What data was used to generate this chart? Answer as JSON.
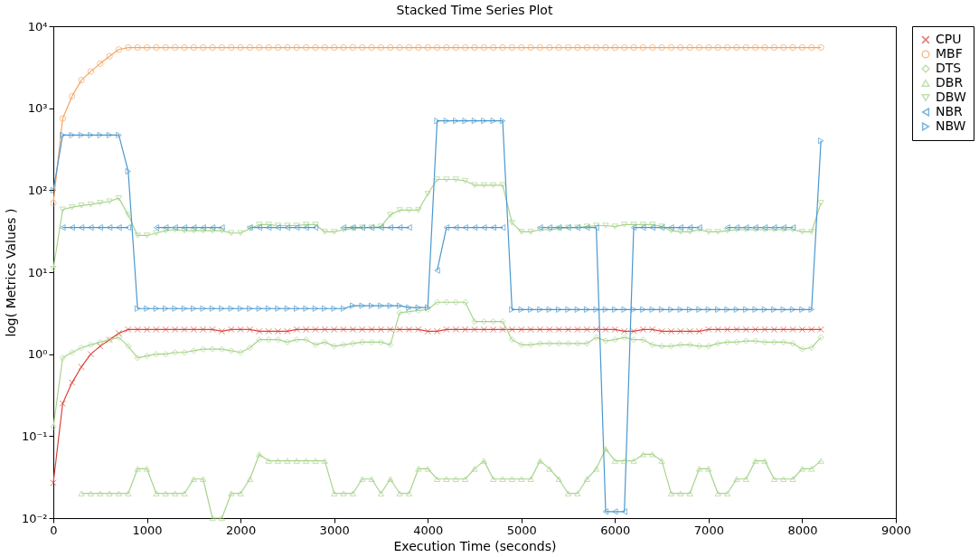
{
  "chart_data": {
    "type": "line",
    "title": "Stacked Time Series Plot",
    "xlabel": "Execution Time (seconds)",
    "ylabel": "log( Metrics Values )",
    "x": [
      0,
      100,
      200,
      300,
      400,
      500,
      600,
      700,
      800,
      900,
      1000,
      1100,
      1200,
      1300,
      1400,
      1500,
      1600,
      1700,
      1800,
      1900,
      2000,
      2100,
      2200,
      2300,
      2400,
      2500,
      2600,
      2700,
      2800,
      2900,
      3000,
      3100,
      3200,
      3300,
      3400,
      3500,
      3600,
      3700,
      3800,
      3900,
      4000,
      4100,
      4200,
      4300,
      4400,
      4500,
      4600,
      4700,
      4800,
      4900,
      5000,
      5100,
      5200,
      5300,
      5400,
      5500,
      5600,
      5700,
      5800,
      5900,
      6000,
      6100,
      6200,
      6300,
      6400,
      6500,
      6600,
      6700,
      6800,
      6900,
      7000,
      7100,
      7200,
      7300,
      7400,
      7500,
      7600,
      7700,
      7800,
      7900,
      8000,
      8100,
      8200
    ],
    "log": "y",
    "xlim": [
      0,
      9000
    ],
    "xticks": [
      0,
      1000,
      2000,
      3000,
      4000,
      5000,
      6000,
      7000,
      8000,
      9000
    ],
    "ylim": [
      0.01,
      10000
    ],
    "yticks": [
      {
        "value": 0.01,
        "label": "10⁻²"
      },
      {
        "value": 0.1,
        "label": "10⁻¹"
      },
      {
        "value": 1,
        "label": "10⁰"
      },
      {
        "value": 10,
        "label": "10¹"
      },
      {
        "value": 100,
        "label": "10²"
      },
      {
        "value": 1000,
        "label": "10³"
      },
      {
        "value": 10000,
        "label": "10⁴"
      }
    ],
    "grid": false,
    "legend": "right",
    "line_style": "solid",
    "series": [
      {
        "name": "CPU",
        "color": "#d8453b",
        "marker": "cross",
        "values": [
          0.027,
          0.25,
          0.45,
          0.7,
          1.0,
          1.25,
          1.5,
          1.8,
          2,
          2,
          2,
          2,
          2,
          2,
          2,
          2,
          2,
          2,
          1.9,
          2,
          2,
          2,
          1.9,
          1.9,
          1.9,
          1.9,
          2,
          2,
          2,
          2,
          2,
          2,
          2,
          2,
          2,
          2,
          2,
          2,
          2,
          2,
          1.9,
          1.9,
          2,
          2,
          2,
          2,
          2,
          2,
          2,
          2,
          2,
          2,
          2,
          2,
          2,
          2,
          2,
          2,
          2,
          2,
          2,
          1.9,
          1.9,
          2,
          2,
          1.9,
          1.9,
          1.9,
          1.9,
          1.9,
          2,
          2,
          2,
          2,
          2,
          2,
          2,
          2,
          2,
          2,
          2,
          2,
          2
        ]
      },
      {
        "name": "MBF",
        "color": "#f4a460",
        "marker": "circle",
        "values": [
          70,
          750,
          1400,
          2200,
          2800,
          3500,
          4300,
          5200,
          5500,
          5500,
          5500,
          5500,
          5500,
          5500,
          5500,
          5500,
          5500,
          5500,
          5500,
          5500,
          5500,
          5500,
          5500,
          5500,
          5500,
          5500,
          5500,
          5500,
          5500,
          5500,
          5500,
          5500,
          5500,
          5500,
          5500,
          5500,
          5500,
          5500,
          5500,
          5500,
          5500,
          5500,
          5500,
          5500,
          5500,
          5500,
          5500,
          5500,
          5500,
          5500,
          5500,
          5500,
          5500,
          5500,
          5500,
          5500,
          5500,
          5500,
          5500,
          5500,
          5500,
          5500,
          5500,
          5500,
          5500,
          5500,
          5500,
          5500,
          5500,
          5500,
          5500,
          5500,
          5500,
          5500,
          5500,
          5500,
          5500,
          5500,
          5500,
          5500,
          5500,
          5500,
          5500
        ]
      },
      {
        "name": "DTS",
        "color": "#a8d48c",
        "marker": "diamond",
        "values": [
          0.13,
          0.9,
          1.05,
          1.2,
          1.3,
          1.4,
          1.5,
          1.6,
          1.25,
          0.9,
          0.95,
          1.0,
          1.0,
          1.05,
          1.05,
          1.1,
          1.15,
          1.15,
          1.15,
          1.1,
          1.05,
          1.2,
          1.5,
          1.5,
          1.5,
          1.4,
          1.5,
          1.5,
          1.3,
          1.4,
          1.25,
          1.3,
          1.35,
          1.4,
          1.4,
          1.4,
          1.3,
          3.2,
          3.3,
          3.4,
          3.5,
          4.3,
          4.3,
          4.3,
          4.3,
          2.5,
          2.5,
          2.5,
          2.5,
          1.5,
          1.3,
          1.3,
          1.35,
          1.35,
          1.35,
          1.35,
          1.35,
          1.35,
          1.6,
          1.45,
          1.5,
          1.6,
          1.5,
          1.5,
          1.3,
          1.25,
          1.25,
          1.3,
          1.3,
          1.25,
          1.25,
          1.35,
          1.4,
          1.4,
          1.45,
          1.45,
          1.4,
          1.4,
          1.4,
          1.35,
          1.15,
          1.2,
          1.6
        ]
      },
      {
        "name": "DBR",
        "color": "#a8d48c",
        "marker": "triangle",
        "values": [
          null,
          null,
          null,
          0.02,
          0.02,
          0.02,
          0.02,
          0.02,
          0.02,
          0.04,
          0.04,
          0.02,
          0.02,
          0.02,
          0.02,
          0.03,
          0.03,
          0.01,
          0.01,
          0.02,
          0.02,
          0.03,
          0.06,
          0.05,
          0.05,
          0.05,
          0.05,
          0.05,
          0.05,
          0.05,
          0.02,
          0.02,
          0.02,
          0.03,
          0.03,
          0.02,
          0.03,
          0.02,
          0.02,
          0.04,
          0.04,
          0.03,
          0.03,
          0.03,
          0.03,
          0.04,
          0.05,
          0.03,
          0.03,
          0.03,
          0.03,
          0.03,
          0.05,
          0.04,
          0.03,
          0.02,
          0.02,
          0.03,
          0.04,
          0.07,
          0.05,
          0.05,
          0.05,
          0.06,
          0.06,
          0.05,
          0.02,
          0.02,
          0.02,
          0.04,
          0.04,
          0.02,
          0.02,
          0.03,
          0.03,
          0.05,
          0.05,
          0.03,
          0.03,
          0.03,
          0.04,
          0.04,
          0.05
        ]
      },
      {
        "name": "DBW",
        "color": "#a8d48c",
        "marker": "triangle-down",
        "values": [
          11,
          58,
          62,
          65,
          67,
          70,
          73,
          80,
          50,
          28,
          28,
          30,
          32,
          33,
          32,
          32,
          32,
          32,
          32,
          30,
          30,
          34,
          38,
          38,
          37,
          37,
          37,
          38,
          38,
          31,
          31,
          33,
          34,
          35,
          35,
          36,
          50,
          57,
          57,
          57,
          90,
          135,
          135,
          135,
          130,
          115,
          115,
          115,
          115,
          40,
          31,
          31,
          33,
          33,
          34,
          35,
          35,
          36,
          37,
          37,
          36,
          38,
          38,
          38,
          38,
          36,
          32,
          31,
          31,
          33,
          31,
          31,
          32,
          33,
          33,
          33,
          33,
          33,
          33,
          33,
          31,
          31,
          70
        ]
      },
      {
        "name": "NBR",
        "color": "#4a98cf",
        "marker": "triangle-left",
        "values": [
          null,
          35,
          35,
          35,
          35,
          35,
          35,
          35,
          35,
          null,
          null,
          35,
          35,
          35,
          35,
          35,
          35,
          35,
          35,
          null,
          null,
          35,
          35,
          35,
          35,
          35,
          35,
          35,
          35,
          null,
          null,
          35,
          35,
          35,
          35,
          35,
          35,
          35,
          35,
          null,
          null,
          10.5,
          35,
          35,
          35,
          35,
          35,
          35,
          35,
          null,
          null,
          null,
          35,
          35,
          35,
          35,
          35,
          35,
          35,
          0.012,
          0.012,
          0.012,
          35,
          35,
          35,
          35,
          35,
          35,
          35,
          35,
          null,
          null,
          35,
          35,
          35,
          35,
          35,
          35,
          35,
          35,
          null,
          null,
          null
        ]
      },
      {
        "name": "NBW",
        "color": "#4a98cf",
        "marker": "triangle-right",
        "values": [
          100,
          470,
          470,
          470,
          470,
          470,
          470,
          470,
          170,
          3.6,
          3.6,
          3.6,
          3.6,
          3.6,
          3.6,
          3.6,
          3.6,
          3.6,
          3.6,
          3.6,
          3.6,
          3.6,
          3.6,
          3.6,
          3.6,
          3.6,
          3.6,
          3.6,
          3.6,
          3.6,
          3.6,
          3.6,
          3.9,
          3.9,
          3.9,
          3.9,
          3.9,
          3.9,
          3.7,
          3.7,
          3.7,
          700,
          700,
          700,
          700,
          700,
          700,
          700,
          700,
          3.5,
          3.5,
          3.5,
          3.5,
          3.5,
          3.5,
          3.5,
          3.5,
          3.5,
          3.5,
          3.5,
          3.5,
          3.5,
          3.5,
          3.5,
          3.5,
          3.5,
          3.5,
          3.5,
          3.5,
          3.5,
          3.5,
          3.5,
          3.5,
          3.5,
          3.5,
          3.5,
          3.5,
          3.5,
          3.5,
          3.5,
          3.5,
          3.5,
          400
        ]
      }
    ]
  }
}
